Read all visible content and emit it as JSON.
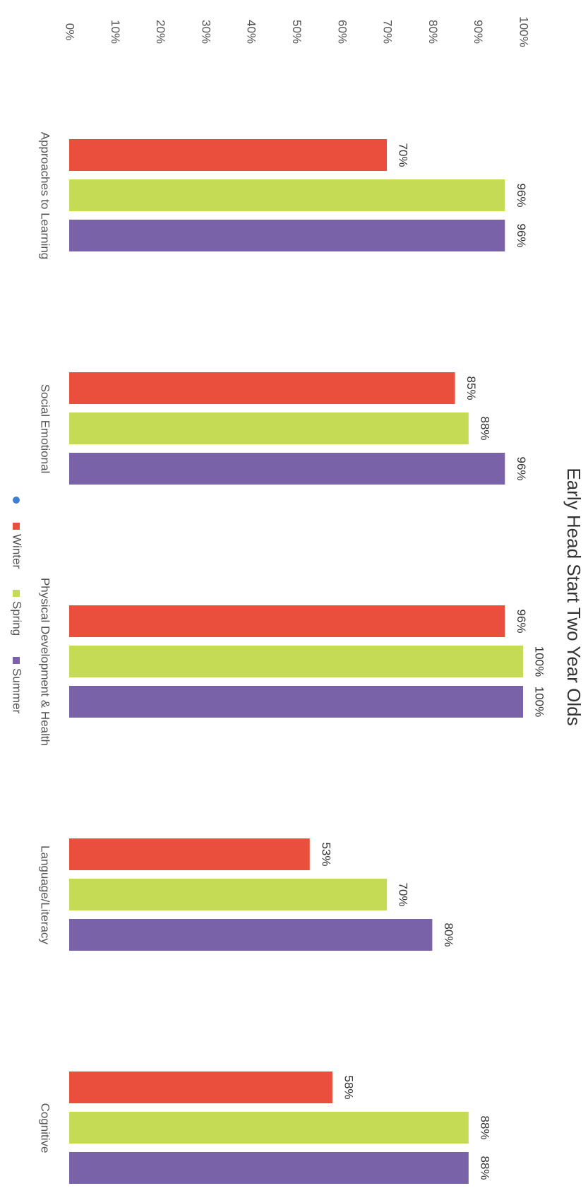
{
  "chart_data": {
    "type": "bar",
    "orientation": "vertical (page rotated 90 degrees clockwise)",
    "title": "Early Head Start  Two Year Olds",
    "xlabel": "",
    "ylabel": "",
    "ylim": [
      0,
      100
    ],
    "y_ticks": [
      "0%",
      "10%",
      "20%",
      "30%",
      "40%",
      "50%",
      "60%",
      "70%",
      "80%",
      "90%",
      "100%"
    ],
    "categories": [
      "Approaches to Learning",
      "Social Emotional",
      "Physical Development & Health",
      "Language/Literacy",
      "Cognitive"
    ],
    "series": [
      {
        "name": "Winter",
        "color": "#ea4f3e",
        "values": [
          70,
          85,
          96,
          53,
          58
        ],
        "labels": [
          "70%",
          "85%",
          "96%",
          "53%",
          "58%"
        ]
      },
      {
        "name": "Spring",
        "color": "#c5da55",
        "values": [
          96,
          88,
          100,
          70,
          88
        ],
        "labels": [
          "96%",
          "88%",
          "100%",
          "70%",
          "88%"
        ]
      },
      {
        "name": "Summer",
        "color": "#7a62a8",
        "values": [
          96,
          96,
          100,
          80,
          88
        ],
        "labels": [
          "96%",
          "96%",
          "100%",
          "80%",
          "88%"
        ]
      }
    ],
    "legend": {
      "position": "bottom",
      "extra_marker_color": "#3d7fd1"
    },
    "grid": false
  }
}
